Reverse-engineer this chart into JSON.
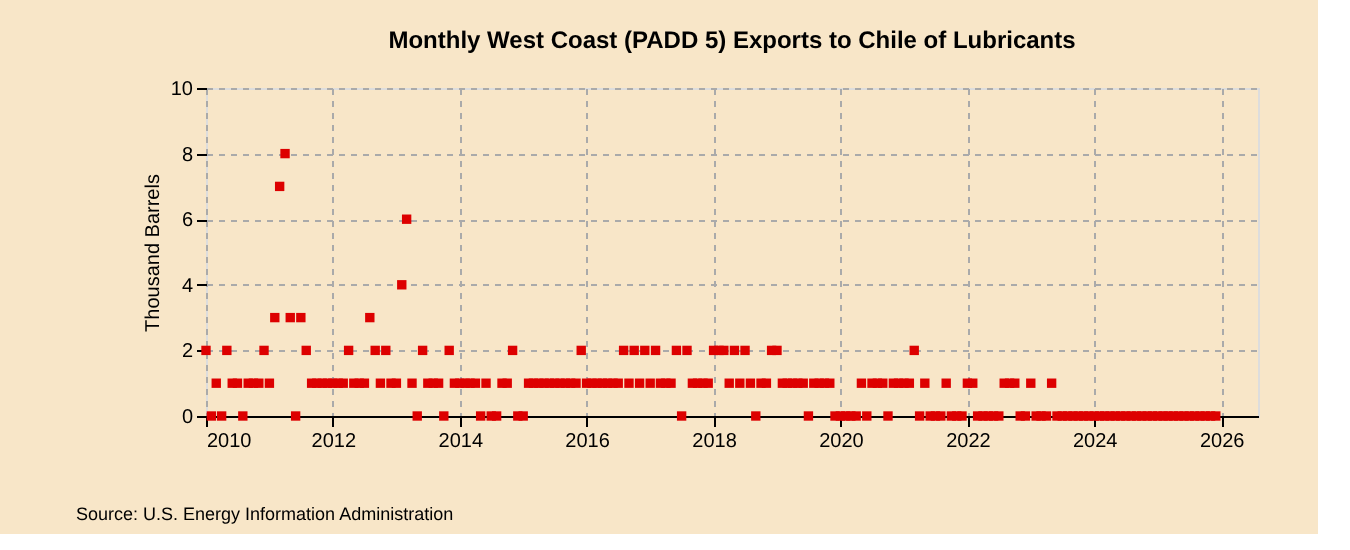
{
  "chart_data": {
    "type": "scatter",
    "title": "Monthly West Coast (PADD 5) Exports to Chile of Lubricants",
    "ylabel": "Thousand Barrels",
    "annotations": [
      "Source: U.S. Energy Information Administration"
    ],
    "x": [
      "2010-01",
      "2010-02",
      "2010-03",
      "2010-04",
      "2010-05",
      "2010-06",
      "2010-07",
      "2010-08",
      "2010-09",
      "2010-10",
      "2010-11",
      "2010-12",
      "2011-01",
      "2011-02",
      "2011-03",
      "2011-04",
      "2011-05",
      "2011-06",
      "2011-07",
      "2011-08",
      "2011-09",
      "2011-10",
      "2011-11",
      "2011-12",
      "2012-01",
      "2012-02",
      "2012-03",
      "2012-04",
      "2012-05",
      "2012-06",
      "2012-07",
      "2012-08",
      "2012-09",
      "2012-10",
      "2012-11",
      "2012-12",
      "2013-01",
      "2013-02",
      "2013-03",
      "2013-04",
      "2013-05",
      "2013-06",
      "2013-07",
      "2013-08",
      "2013-09",
      "2013-10",
      "2013-11",
      "2013-12",
      "2014-01",
      "2014-02",
      "2014-03",
      "2014-04",
      "2014-05",
      "2014-06",
      "2014-07",
      "2014-08",
      "2014-09",
      "2014-10",
      "2014-11",
      "2014-12",
      "2015-01",
      "2015-02",
      "2015-03",
      "2015-04",
      "2015-05",
      "2015-06",
      "2015-07",
      "2015-08",
      "2015-09",
      "2015-10",
      "2015-11",
      "2015-12",
      "2016-01",
      "2016-02",
      "2016-03",
      "2016-04",
      "2016-05",
      "2016-06",
      "2016-07",
      "2016-08",
      "2016-09",
      "2016-10",
      "2016-11",
      "2016-12",
      "2017-01",
      "2017-02",
      "2017-03",
      "2017-04",
      "2017-05",
      "2017-06",
      "2017-07",
      "2017-08",
      "2017-09",
      "2017-10",
      "2017-11",
      "2017-12",
      "2018-01",
      "2018-02",
      "2018-03",
      "2018-04",
      "2018-05",
      "2018-06",
      "2018-07",
      "2018-08",
      "2018-09",
      "2018-10",
      "2018-11",
      "2018-12",
      "2019-01",
      "2019-02",
      "2019-03",
      "2019-04",
      "2019-05",
      "2019-06",
      "2019-07",
      "2019-08",
      "2019-09",
      "2019-10",
      "2019-11",
      "2019-12",
      "2020-01",
      "2020-02",
      "2020-03",
      "2020-04",
      "2020-05",
      "2020-06",
      "2020-07",
      "2020-08",
      "2020-09",
      "2020-10",
      "2020-11",
      "2020-12",
      "2021-01",
      "2021-02",
      "2021-03",
      "2021-04",
      "2021-05",
      "2021-06",
      "2021-07",
      "2021-08",
      "2021-09",
      "2021-10",
      "2021-11",
      "2021-12",
      "2022-01",
      "2022-02",
      "2022-03",
      "2022-04",
      "2022-05",
      "2022-06",
      "2022-07",
      "2022-08",
      "2022-09",
      "2022-10",
      "2022-11",
      "2022-12",
      "2023-01",
      "2023-02",
      "2023-03",
      "2023-04",
      "2023-05",
      "2023-06",
      "2023-07",
      "2023-08",
      "2023-09",
      "2023-10",
      "2023-11",
      "2023-12",
      "2024-01",
      "2024-02",
      "2024-03",
      "2024-04",
      "2024-05",
      "2024-06",
      "2024-07",
      "2024-08",
      "2024-09",
      "2024-10",
      "2024-11",
      "2024-12",
      "2025-01",
      "2025-02",
      "2025-03",
      "2025-04",
      "2025-05",
      "2025-06",
      "2025-07",
      "2025-08",
      "2025-09",
      "2025-10",
      "2025-11",
      "2025-12"
    ],
    "series": [
      {
        "color": "#dd0000",
        "values": [
          2,
          0,
          1,
          0,
          2,
          1,
          1,
          0,
          1,
          1,
          1,
          2,
          1,
          3,
          7,
          8,
          3,
          0,
          3,
          2,
          1,
          1,
          1,
          1,
          1,
          1,
          1,
          2,
          1,
          1,
          1,
          3,
          2,
          1,
          2,
          1,
          1,
          4,
          6,
          1,
          0,
          2,
          1,
          1,
          1,
          0,
          2,
          1,
          1,
          1,
          1,
          1,
          0,
          1,
          0,
          0,
          1,
          1,
          2,
          0,
          0,
          1,
          1,
          1,
          1,
          1,
          1,
          1,
          1,
          1,
          1,
          2,
          1,
          1,
          1,
          1,
          1,
          1,
          1,
          2,
          1,
          2,
          1,
          2,
          1,
          2,
          1,
          1,
          1,
          2,
          0,
          2,
          1,
          1,
          1,
          1,
          2,
          2,
          2,
          1,
          2,
          1,
          2,
          1,
          0,
          1,
          1,
          2,
          2,
          1,
          1,
          1,
          1,
          1,
          0,
          1,
          1,
          1,
          1,
          0,
          0,
          0,
          0,
          0,
          1,
          0,
          1,
          1,
          1,
          0,
          1,
          1,
          1,
          1,
          2,
          0,
          1,
          0,
          0,
          0,
          1,
          0,
          0,
          0,
          1,
          1,
          0,
          0,
          0,
          0,
          0,
          1,
          1,
          1,
          0,
          0,
          1,
          0,
          0,
          0,
          1,
          0,
          0,
          0,
          0,
          0,
          0,
          0,
          0,
          0,
          0,
          0,
          0,
          0,
          0,
          0,
          0,
          0,
          0,
          0,
          0,
          0,
          0,
          0,
          0,
          0,
          0,
          0,
          0,
          0,
          0,
          0
        ]
      }
    ],
    "xlim": [
      "2010",
      "2026-08"
    ],
    "xticks": [
      "2010",
      "2012",
      "2014",
      "2016",
      "2018",
      "2020",
      "2022",
      "2024",
      "2026"
    ],
    "ylim": [
      0,
      10
    ],
    "yticks": [
      0,
      2,
      4,
      6,
      8,
      10
    ],
    "grid": true,
    "marker": "square"
  }
}
